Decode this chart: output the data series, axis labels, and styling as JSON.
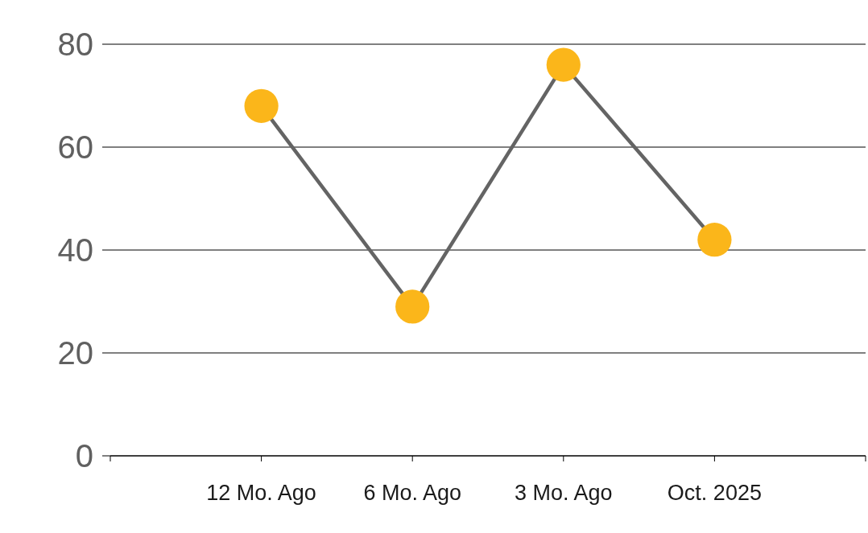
{
  "chart_data": {
    "type": "line",
    "categories": [
      "12 Mo. Ago",
      "6 Mo. Ago",
      "3 Mo. Ago",
      "Oct. 2025"
    ],
    "series": [
      {
        "color": "#646464",
        "colors": [
          "#fbb61a",
          "#fbb61a",
          "#fbb61a",
          "#fbb61a"
        ],
        "values": [
          68,
          29,
          76,
          42
        ]
      }
    ],
    "ylim": [
      0,
      80
    ],
    "yticks": [
      0,
      20,
      40,
      60,
      80
    ],
    "grid": "y",
    "marker": "circle",
    "line_style": "solid"
  }
}
